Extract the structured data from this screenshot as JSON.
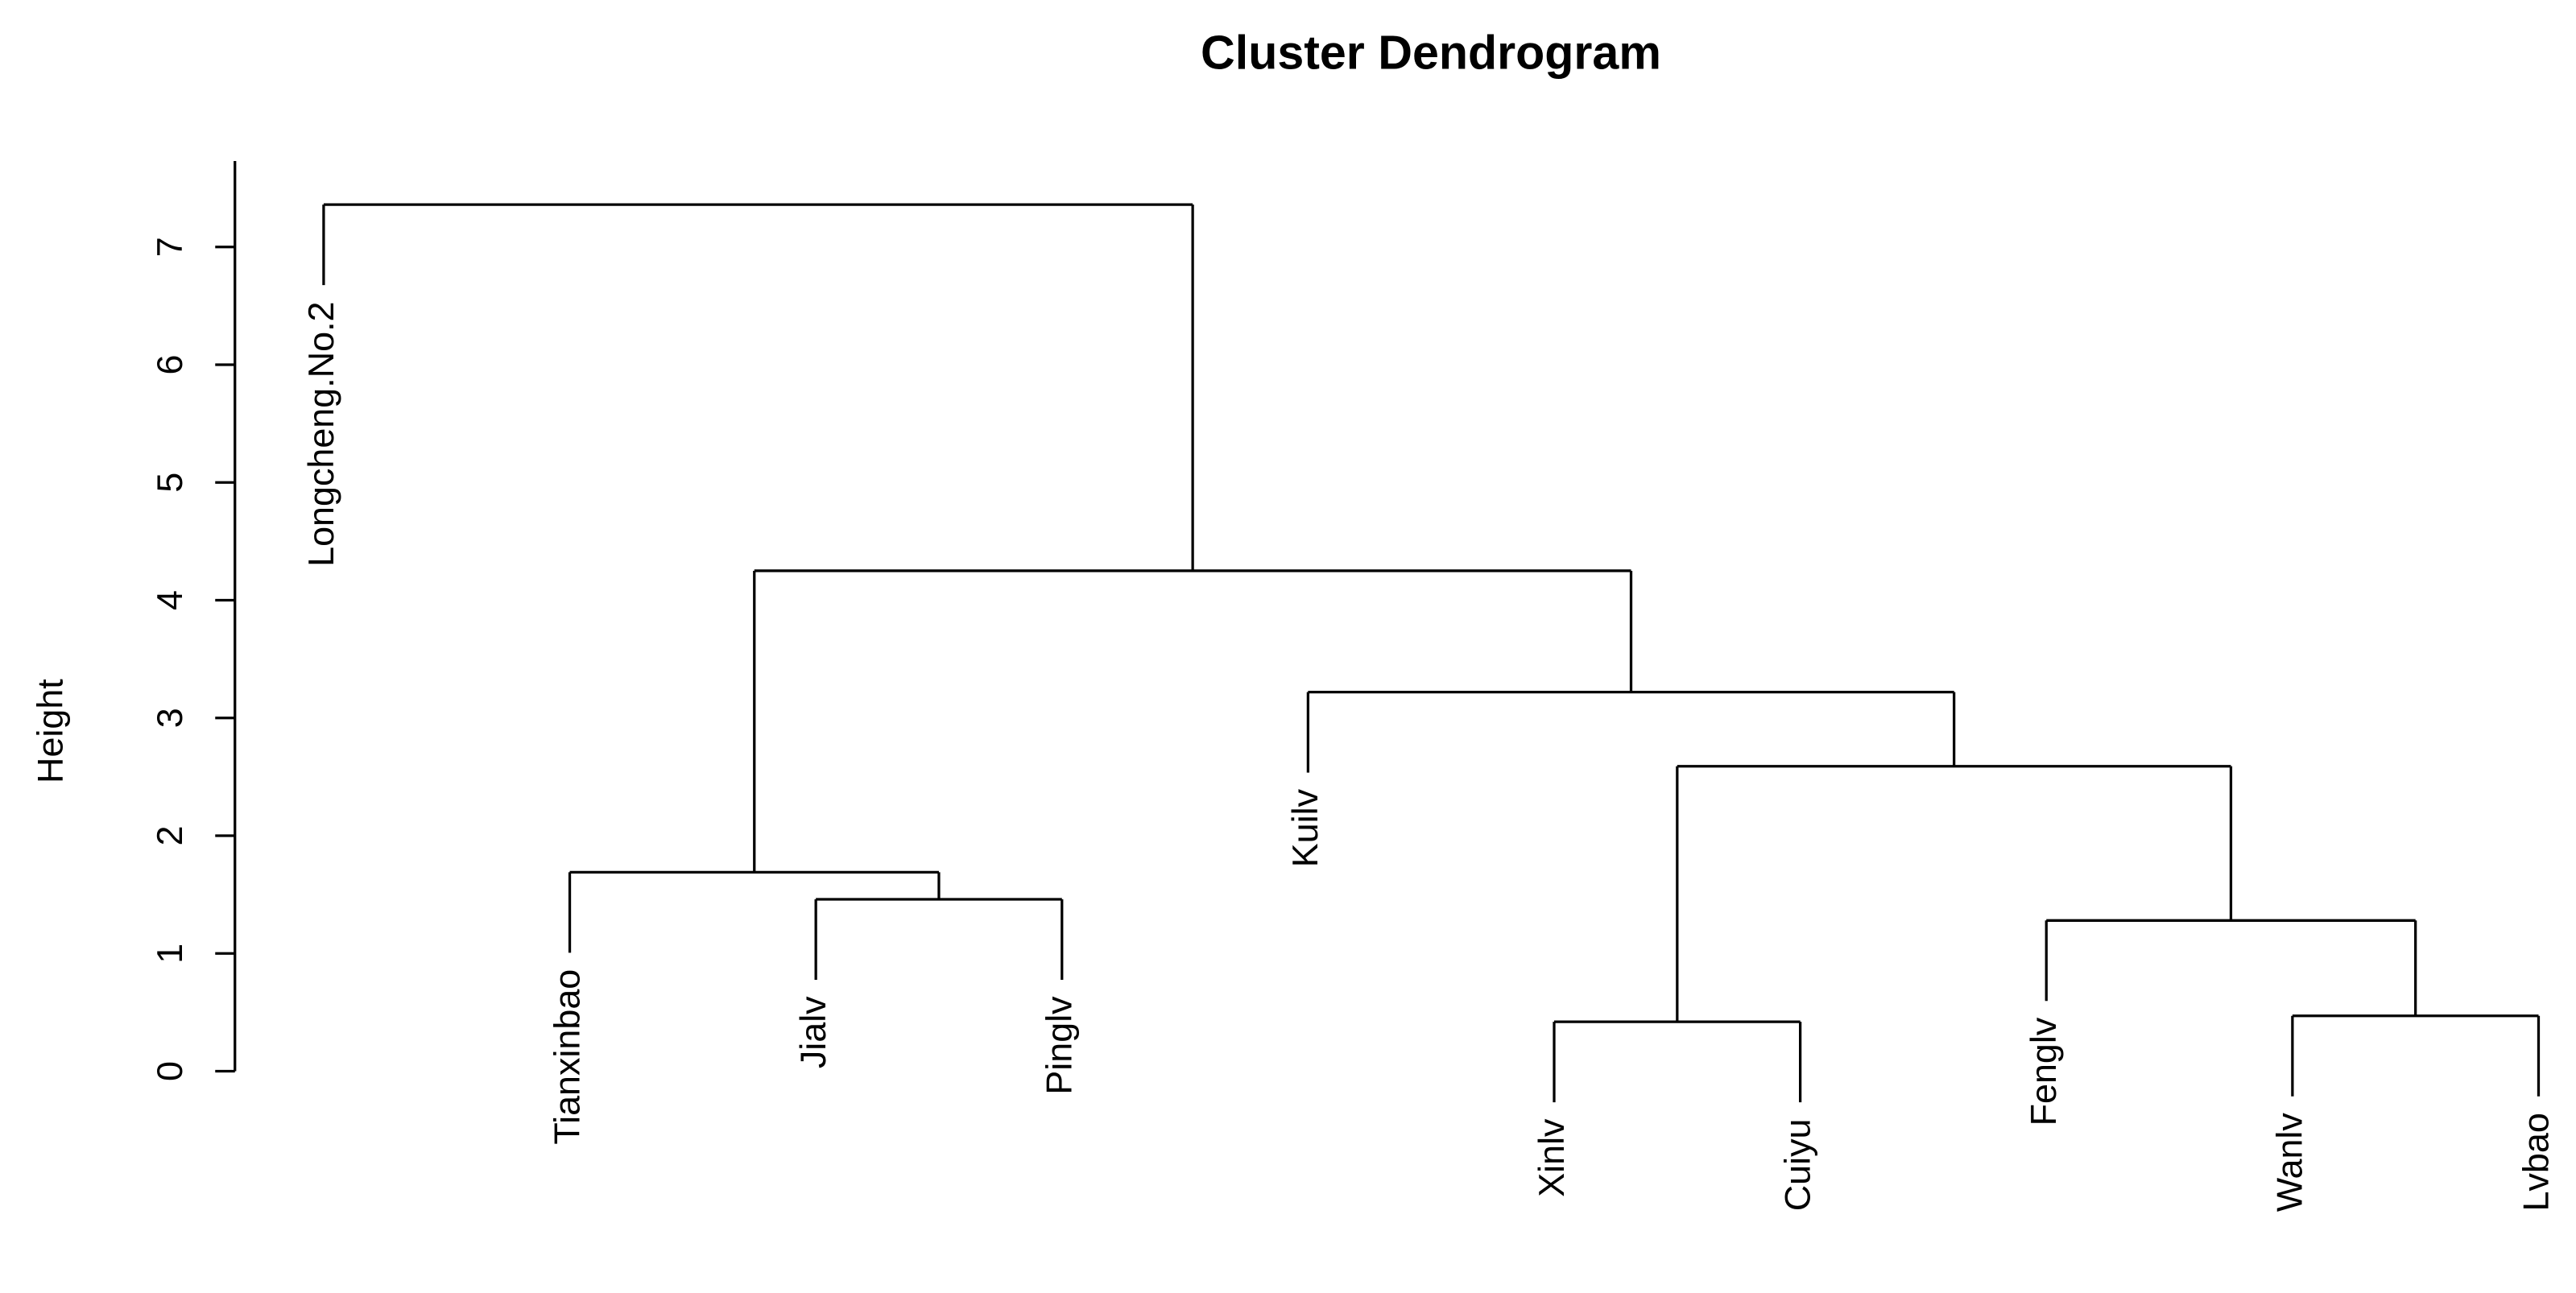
{
  "chart_data": {
    "type": "dendrogram",
    "title": "Cluster Dendrogram",
    "y_label": "Height",
    "ylim": [
      0,
      7.73
    ],
    "yticks": [
      0,
      1,
      2,
      3,
      4,
      5,
      6,
      7
    ],
    "color": "#000000",
    "tree": {
      "height": 7.36,
      "children": [
        "Longcheng.No.2",
        {
          "height": 4.25,
          "children": [
            {
              "height": 1.69,
              "children": [
                "Tianxinbao",
                {
                  "height": 1.46,
                  "children": [
                    "Jialv",
                    "Pinglv"
                  ]
                }
              ]
            },
            {
              "height": 3.22,
              "children": [
                "Kuilv",
                {
                  "height": 2.59,
                  "children": [
                    {
                      "height": 0.42,
                      "children": [
                        "Xinlv",
                        "Cuiyu"
                      ]
                    },
                    {
                      "height": 1.28,
                      "children": [
                        "Fenglv",
                        {
                          "height": 0.47,
                          "children": [
                            "Wanlv",
                            "Lvbao"
                          ]
                        }
                      ]
                    }
                  ]
                }
              ]
            }
          ]
        }
      ]
    }
  }
}
